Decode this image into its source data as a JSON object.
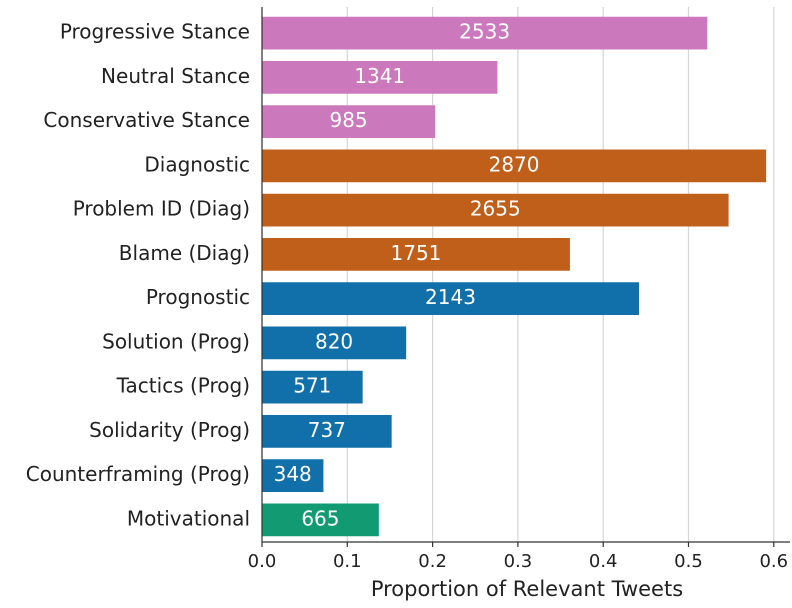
{
  "chart_data": {
    "type": "barh",
    "xlabel": "Proportion of Relevant Tweets",
    "categories": [
      "Progressive Stance",
      "Neutral Stance",
      "Conservative Stance",
      "Diagnostic",
      "Problem ID (Diag)",
      "Blame (Diag)",
      "Prognostic",
      "Solution (Prog)",
      "Tactics (Prog)",
      "Solidarity (Prog)",
      "Counterframing (Prog)",
      "Motivational"
    ],
    "values": [
      0.522,
      0.276,
      0.203,
      0.591,
      0.547,
      0.361,
      0.442,
      0.169,
      0.118,
      0.152,
      0.072,
      0.137
    ],
    "counts": [
      2533,
      1341,
      985,
      2870,
      2655,
      1751,
      2143,
      820,
      571,
      737,
      348,
      665
    ],
    "colors": [
      "#cc78bc",
      "#cc78bc",
      "#cc78bc",
      "#c05f1a",
      "#c05f1a",
      "#c05f1a",
      "#1170aa",
      "#1170aa",
      "#1170aa",
      "#1170aa",
      "#1170aa",
      "#129b73"
    ],
    "xlim": [
      0,
      0.619
    ],
    "xticks": [
      {
        "value": 0,
        "label": "0.0"
      },
      0.1,
      0.2,
      0.3,
      0.4,
      0.5,
      0.6
    ],
    "grid": true
  }
}
